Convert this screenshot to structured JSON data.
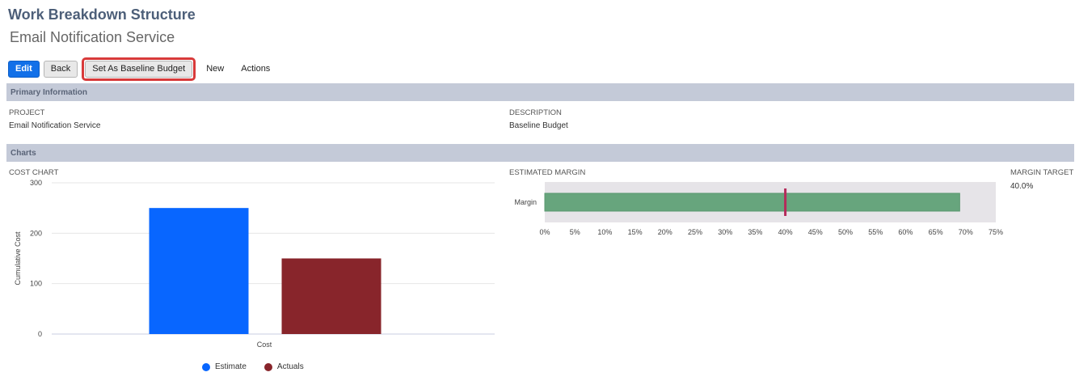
{
  "header": {
    "title": "Work Breakdown Structure",
    "subtitle": "Email Notification Service"
  },
  "toolbar": {
    "edit_label": "Edit",
    "back_label": "Back",
    "baseline_label": "Set As Baseline Budget",
    "new_label": "New",
    "actions_label": "Actions"
  },
  "primary_info": {
    "section_title": "Primary Information",
    "project_label": "PROJECT",
    "project_value": "Email Notification Service",
    "description_label": "DESCRIPTION",
    "description_value": "Baseline Budget"
  },
  "charts": {
    "section_title": "Charts",
    "cost_chart_label": "COST CHART",
    "margin_chart_label": "ESTIMATED MARGIN",
    "margin_target_label": "MARGIN TARGET",
    "margin_target_value": "40.0%"
  },
  "colors": {
    "estimate": "#0866ff",
    "actuals": "#88252b",
    "margin_bar": "#67a57d",
    "target_marker": "#b52a5a",
    "primary_button": "#1270e8",
    "highlight": "#d83a3a"
  },
  "chart_data": [
    {
      "type": "bar",
      "title": "COST CHART",
      "categories": [
        "Cost"
      ],
      "series": [
        {
          "name": "Estimate",
          "values": [
            250
          ]
        },
        {
          "name": "Actuals",
          "values": [
            150
          ]
        }
      ],
      "ylabel": "Cumulative Cost",
      "xlabel": "",
      "ylim": [
        0,
        300
      ],
      "yticks": [
        "0",
        "100",
        "200",
        "300"
      ],
      "grid": true,
      "legend": "bottom"
    },
    {
      "type": "bar",
      "orientation": "horizontal",
      "title": "ESTIMATED MARGIN",
      "categories": [
        "Margin"
      ],
      "values": [
        69
      ],
      "target": 40,
      "xlim": [
        0,
        75
      ],
      "xticks": [
        "0%",
        "5%",
        "10%",
        "15%",
        "20%",
        "25%",
        "30%",
        "35%",
        "40%",
        "45%",
        "50%",
        "55%",
        "60%",
        "65%",
        "70%",
        "75%"
      ]
    }
  ]
}
